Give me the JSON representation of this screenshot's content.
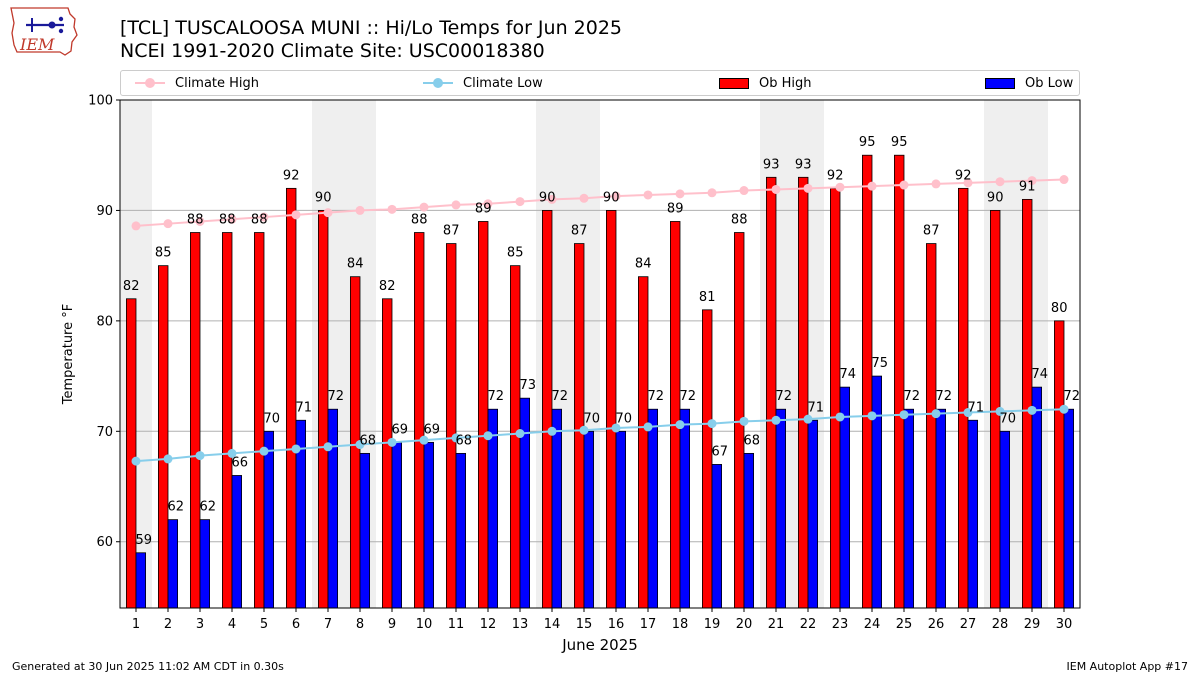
{
  "header": {
    "title_line1": "[TCL] TUSCALOOSA MUNI :: Hi/Lo Temps for Jun 2025",
    "title_line2": "NCEI 1991-2020 Climate Site: USC00018380"
  },
  "logo": {
    "text": "IEM"
  },
  "footer": {
    "left": "Generated at 30 Jun 2025 11:02 AM CDT in 0.30s",
    "right": "IEM Autoplot App #17"
  },
  "colors": {
    "ob_high": "#ff0000",
    "ob_low": "#0000ff",
    "climate_high": "#ffc0cb",
    "climate_low": "#87ceeb",
    "shade": "#efefef",
    "grid": "#b0b0b0"
  },
  "legend": {
    "climate_high": "Climate High",
    "climate_low": "Climate Low",
    "ob_high": "Ob High",
    "ob_low": "Ob Low"
  },
  "chart_data": {
    "type": "bar",
    "xlabel": "June 2025",
    "ylabel": "Temperature °F",
    "ylim": [
      54,
      100
    ],
    "yticks": [
      60,
      70,
      80,
      90,
      100
    ],
    "categories": [
      "1",
      "2",
      "3",
      "4",
      "5",
      "6",
      "7",
      "8",
      "9",
      "10",
      "11",
      "12",
      "13",
      "14",
      "15",
      "16",
      "17",
      "18",
      "19",
      "20",
      "21",
      "22",
      "23",
      "24",
      "25",
      "26",
      "27",
      "28",
      "29",
      "30"
    ],
    "weekend_days": [
      1,
      7,
      8,
      14,
      15,
      21,
      22,
      28,
      29
    ],
    "series": [
      {
        "name": "Ob High",
        "type": "bar",
        "values": [
          82,
          85,
          88,
          88,
          88,
          92,
          90,
          84,
          82,
          88,
          87,
          89,
          85,
          90,
          87,
          90,
          84,
          89,
          81,
          88,
          93,
          93,
          92,
          95,
          95,
          87,
          92,
          90,
          91,
          80
        ]
      },
      {
        "name": "Ob Low",
        "type": "bar",
        "values": [
          59,
          62,
          62,
          66,
          70,
          71,
          72,
          68,
          69,
          69,
          68,
          72,
          73,
          72,
          70,
          70,
          72,
          72,
          67,
          68,
          72,
          71,
          74,
          75,
          72,
          72,
          71,
          70,
          74,
          72
        ]
      },
      {
        "name": "Climate High",
        "type": "line",
        "values": [
          88.6,
          88.8,
          89.0,
          89.2,
          89.4,
          89.6,
          89.8,
          90.0,
          90.1,
          90.3,
          90.5,
          90.6,
          90.8,
          91.0,
          91.1,
          91.3,
          91.4,
          91.5,
          91.6,
          91.8,
          91.9,
          92.0,
          92.1,
          92.2,
          92.3,
          92.4,
          92.5,
          92.6,
          92.7,
          92.8
        ]
      },
      {
        "name": "Climate Low",
        "type": "line",
        "values": [
          67.3,
          67.5,
          67.8,
          68.0,
          68.2,
          68.4,
          68.6,
          68.8,
          69.0,
          69.2,
          69.4,
          69.6,
          69.8,
          70.0,
          70.1,
          70.3,
          70.4,
          70.6,
          70.7,
          70.9,
          71.0,
          71.1,
          71.3,
          71.4,
          71.5,
          71.6,
          71.7,
          71.8,
          71.9,
          72.0
        ]
      }
    ]
  }
}
